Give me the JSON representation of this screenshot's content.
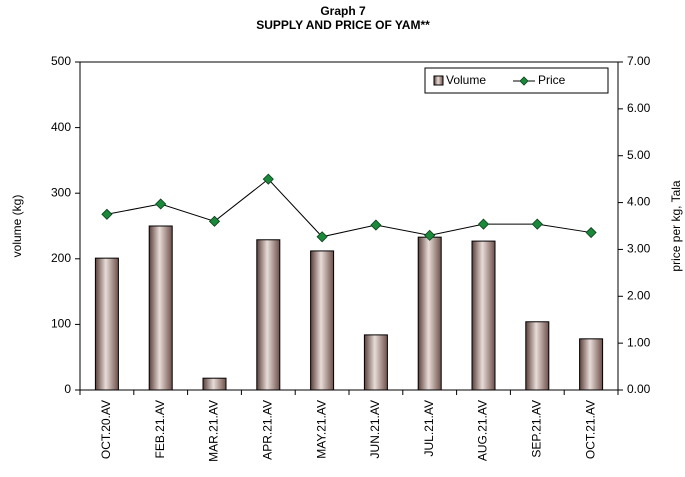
{
  "chart_data": {
    "type": "bar_line",
    "title": "Graph 7",
    "subtitle": "SUPPLY AND PRICE OF YAM**",
    "y_label": "volume (kg)",
    "y2_label": "price per kg, Tala",
    "categories": [
      "OCT.20.AV",
      "FEB.21.AV",
      "MAR.21.AV",
      "APR.21.AV",
      "MAY.21.AV",
      "JUN.21.AV",
      "JUL.21.AV",
      "AUG.21.AV",
      "SEP.21.AV",
      "OCT.21.AV"
    ],
    "series": [
      {
        "name": "Volume",
        "type": "bar",
        "color": "#8b6a64",
        "values": [
          201,
          250,
          18,
          229,
          212,
          84,
          233,
          227,
          104,
          78
        ]
      },
      {
        "name": "Price",
        "type": "line",
        "axis": "y2",
        "color": "#1a8a3a",
        "values": [
          3.75,
          3.97,
          3.6,
          4.5,
          3.27,
          3.52,
          3.3,
          3.54,
          3.54,
          3.36
        ]
      }
    ],
    "ylim": [
      0,
      500
    ],
    "yticks": [
      0,
      100,
      200,
      300,
      400,
      500
    ],
    "y2lim": [
      0,
      7
    ],
    "y2ticks": [
      {
        "value": 0,
        "label": "0.00"
      },
      {
        "value": 1,
        "label": "1.00"
      },
      {
        "value": 2,
        "label": "2.00"
      },
      {
        "value": 3,
        "label": "3.00"
      },
      {
        "value": 4,
        "label": "4.00"
      },
      {
        "value": 5,
        "label": "5.00"
      },
      {
        "value": 6,
        "label": "6.00"
      },
      {
        "value": 7,
        "label": "7.00"
      }
    ],
    "legend": "upper right"
  }
}
